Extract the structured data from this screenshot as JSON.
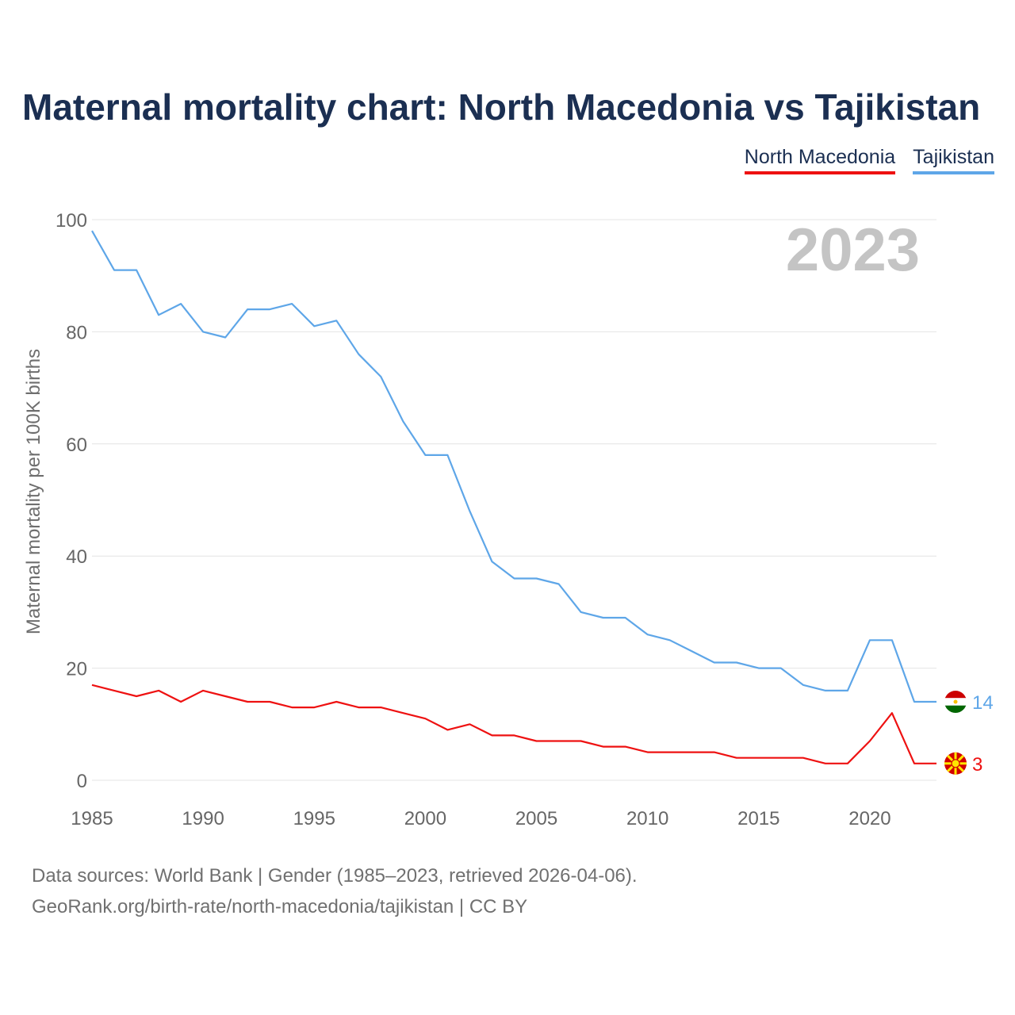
{
  "title": "Maternal mortality chart: North Macedonia vs Tajikistan",
  "legend": [
    {
      "label": "North Macedonia",
      "color": "#ee1111"
    },
    {
      "label": "Tajikistan",
      "color": "#5ea6e8"
    }
  ],
  "year_label": "2023",
  "footer": {
    "line1": "Data sources: World Bank | Gender (1985–2023, retrieved 2026-04-06).",
    "line2": "GeoRank.org/birth-rate/north-macedonia/tajikistan | CC BY"
  },
  "chart_data": {
    "type": "line",
    "title": "Maternal mortality chart: North Macedonia vs Tajikistan",
    "xlabel": "",
    "ylabel": "Maternal mortality per 100K births",
    "xlim": [
      1985,
      2023
    ],
    "ylim": [
      0,
      100
    ],
    "x_ticks": [
      1985,
      1990,
      1995,
      2000,
      2005,
      2010,
      2015,
      2020
    ],
    "y_ticks": [
      0,
      20,
      40,
      60,
      80,
      100
    ],
    "grid": true,
    "x": [
      1985,
      1986,
      1987,
      1988,
      1989,
      1990,
      1991,
      1992,
      1993,
      1994,
      1995,
      1996,
      1997,
      1998,
      1999,
      2000,
      2001,
      2002,
      2003,
      2004,
      2005,
      2006,
      2007,
      2008,
      2009,
      2010,
      2011,
      2012,
      2013,
      2014,
      2015,
      2016,
      2017,
      2018,
      2019,
      2020,
      2021,
      2022,
      2023
    ],
    "series": [
      {
        "name": "Tajikistan",
        "color": "#5ea6e8",
        "values": [
          98,
          91,
          91,
          83,
          85,
          80,
          79,
          84,
          84,
          85,
          81,
          82,
          76,
          72,
          64,
          58,
          58,
          48,
          39,
          36,
          36,
          35,
          30,
          29,
          29,
          26,
          25,
          23,
          21,
          21,
          20,
          20,
          17,
          16,
          16,
          25,
          25,
          14,
          14
        ],
        "end_label": "14"
      },
      {
        "name": "North Macedonia",
        "color": "#ee1111",
        "values": [
          17,
          16,
          15,
          16,
          14,
          16,
          15,
          14,
          14,
          13,
          13,
          14,
          13,
          13,
          12,
          11,
          9,
          10,
          8,
          8,
          7,
          7,
          7,
          6,
          6,
          5,
          5,
          5,
          5,
          4,
          4,
          4,
          4,
          3,
          3,
          7,
          12,
          3,
          3
        ],
        "end_label": "3"
      }
    ]
  }
}
